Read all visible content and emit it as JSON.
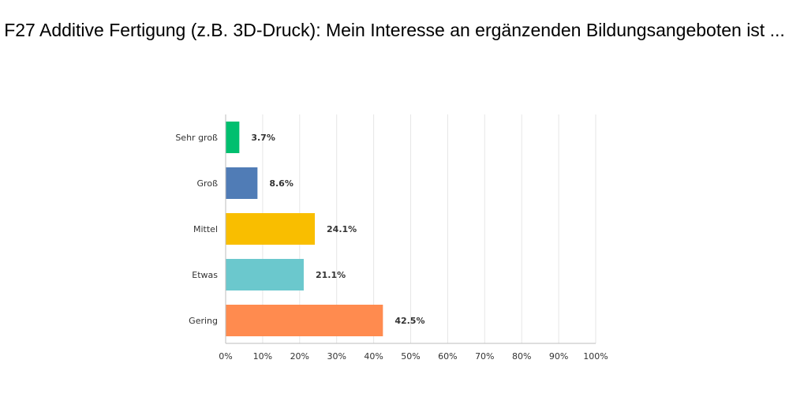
{
  "chart_data": {
    "type": "bar",
    "orientation": "horizontal",
    "title": "F27 Additive Fertigung (z.B. 3D-Druck): Mein Interesse an ergänzenden Bildungsangeboten ist ...",
    "categories": [
      "Sehr groß",
      "Groß",
      "Mittel",
      "Etwas",
      "Gering"
    ],
    "values": [
      3.7,
      8.6,
      24.1,
      21.1,
      42.5
    ],
    "value_labels": [
      "3.7%",
      "8.6%",
      "24.1%",
      "21.1%",
      "42.5%"
    ],
    "colors": [
      "#00bf6f",
      "#507cb6",
      "#f9be00",
      "#6bc8cd",
      "#ff8b4f"
    ],
    "xlim": [
      0,
      100
    ],
    "xticks": [
      0,
      10,
      20,
      30,
      40,
      50,
      60,
      70,
      80,
      90,
      100
    ],
    "xtick_labels": [
      "0%",
      "10%",
      "20%",
      "30%",
      "40%",
      "50%",
      "60%",
      "70%",
      "80%",
      "90%",
      "100%"
    ],
    "xlabel": "",
    "ylabel": "",
    "grid": true,
    "legend": "none"
  }
}
